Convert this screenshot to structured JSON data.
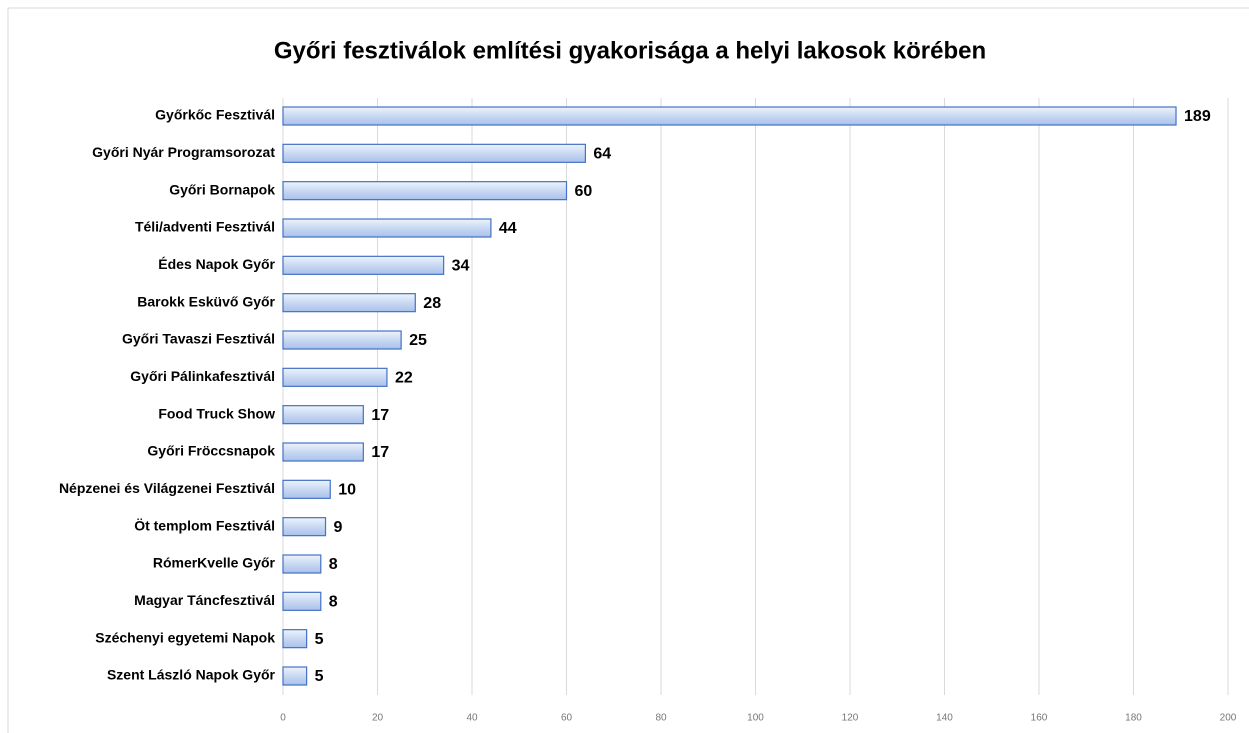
{
  "chart_data": {
    "type": "bar",
    "orientation": "horizontal",
    "title": "Győri fesztiválok említési gyakorisága a helyi lakosok körében",
    "categories": [
      "Győrkőc Fesztivál",
      "Győri Nyár Programsorozat",
      "Győri Bornapok",
      "Téli/adventi Fesztivál",
      "Édes Napok Győr",
      "Barokk Esküvő Győr",
      "Győri Tavaszi Fesztivál",
      "Győri Pálinkafesztivál",
      "Food Truck Show",
      "Győri Fröccsnapok",
      "Népzenei és Világzenei Fesztivál",
      "Öt templom Fesztivál",
      "RómerKvelle Győr",
      "Magyar Táncfesztivál",
      "Széchenyi egyetemi Napok",
      "Szent László Napok Győr"
    ],
    "values": [
      189,
      64,
      60,
      44,
      34,
      28,
      25,
      22,
      17,
      17,
      10,
      9,
      8,
      8,
      5,
      5
    ],
    "color": "#4472c4",
    "xlim": [
      0,
      200
    ],
    "xticks": [
      0,
      20,
      40,
      60,
      80,
      100,
      120,
      140,
      160,
      180,
      200
    ],
    "grid": true
  }
}
